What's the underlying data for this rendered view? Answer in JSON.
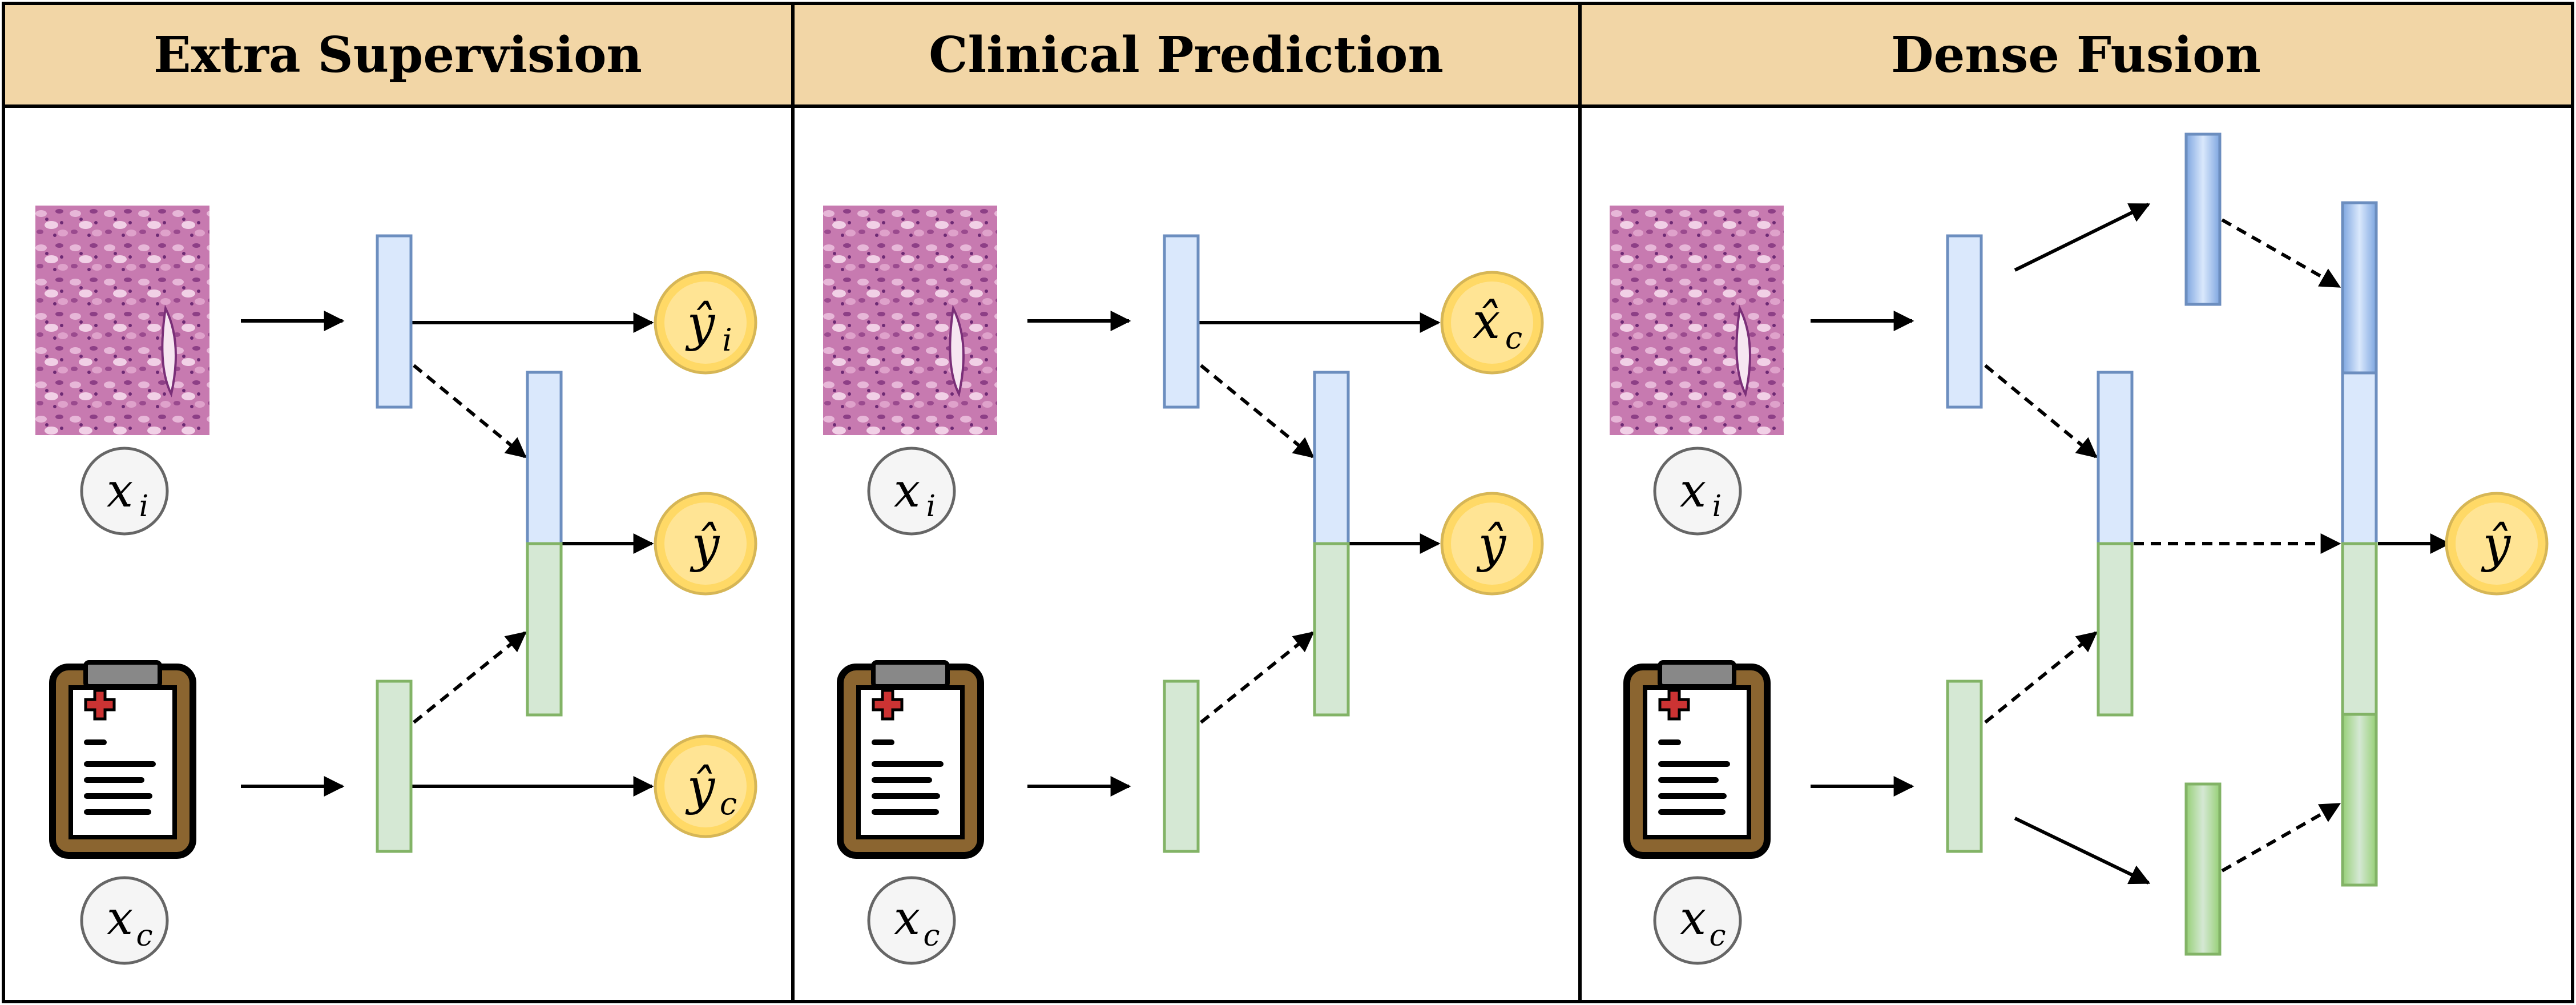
{
  "panels": [
    {
      "title": "Extra Supervision",
      "image_input": "x_i",
      "clinical_input": "x_c",
      "outputs": [
        {
          "glyph": "ŷ",
          "sub": "i"
        },
        {
          "glyph": "ŷ",
          "sub": ""
        },
        {
          "glyph": "ŷ",
          "sub": "c"
        }
      ]
    },
    {
      "title": "Clinical Prediction",
      "image_input": "x_i",
      "clinical_input": "x_c",
      "outputs": [
        {
          "glyph": "x̂",
          "sub": "c"
        },
        {
          "glyph": "ŷ",
          "sub": ""
        }
      ]
    },
    {
      "title": "Dense Fusion",
      "image_input": "x_i",
      "clinical_input": "x_c",
      "outputs": [
        {
          "glyph": "ŷ",
          "sub": ""
        }
      ]
    }
  ],
  "colors": {
    "header_fill": "#f2d6a6",
    "border": "#000000",
    "image_feature_fill": "#dae8fc",
    "image_feature_stroke": "#6c8ebf",
    "clinical_feature_fill": "#d5e8d4",
    "clinical_feature_stroke": "#82b366",
    "output_fill": "#fff2cc",
    "output_stroke": "#d6b656",
    "input_fill": "#f5f5f5",
    "input_stroke": "#666666",
    "histology_base": "#c77ab0",
    "clipboard_board": "#8b6530",
    "medical_cross": "#cc3333"
  },
  "icons": {
    "histology": "histology-slide-image",
    "clinical": "clipboard-icon"
  }
}
